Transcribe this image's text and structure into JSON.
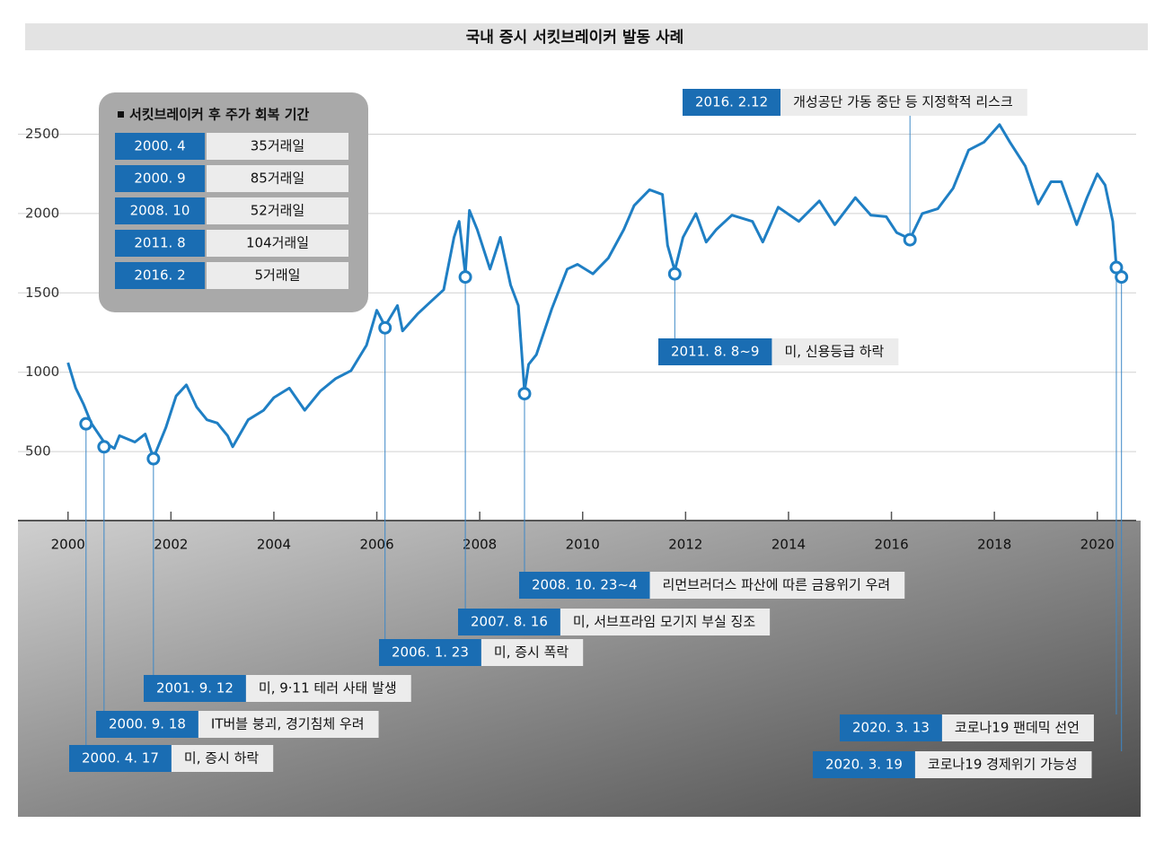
{
  "chart_data": {
    "type": "line",
    "title": "국내 증시 서킷브레이커 발동 사례",
    "color": "#1f7fc4",
    "xlim": [
      1999.9,
      2020.58
    ],
    "xticks": [
      2000,
      2002,
      2004,
      2006,
      2008,
      2010,
      2012,
      2014,
      2016,
      2018,
      2020
    ],
    "ylim": [
      65,
      2780
    ],
    "yticks": [
      500,
      1000,
      1500,
      2000,
      2500
    ],
    "grid": true,
    "x": [
      2000.0,
      2000.15,
      2000.3,
      2000.45,
      2000.7,
      2000.9,
      2001.0,
      2001.3,
      2001.5,
      2001.66,
      2001.9,
      2002.1,
      2002.3,
      2002.5,
      2002.7,
      2002.9,
      2003.1,
      2003.2,
      2003.5,
      2003.8,
      2004.0,
      2004.3,
      2004.6,
      2004.9,
      2005.2,
      2005.5,
      2005.8,
      2006.0,
      2006.16,
      2006.4,
      2006.5,
      2006.8,
      2007.0,
      2007.3,
      2007.5,
      2007.6,
      2007.72,
      2007.8,
      2007.95,
      2008.2,
      2008.4,
      2008.6,
      2008.75,
      2008.87,
      2008.95,
      2009.1,
      2009.4,
      2009.7,
      2009.9,
      2010.2,
      2010.5,
      2010.8,
      2011.0,
      2011.3,
      2011.55,
      2011.65,
      2011.79,
      2011.95,
      2012.2,
      2012.4,
      2012.6,
      2012.9,
      2013.3,
      2013.5,
      2013.8,
      2014.2,
      2014.6,
      2014.9,
      2015.3,
      2015.6,
      2015.9,
      2016.1,
      2016.36,
      2016.6,
      2016.9,
      2017.2,
      2017.5,
      2017.8,
      2018.1,
      2018.3,
      2018.6,
      2018.85,
      2019.1,
      2019.3,
      2019.6,
      2019.8,
      2020.0,
      2020.15,
      2020.3,
      2020.37,
      2020.47
    ],
    "values": [
      1060,
      900,
      800,
      680,
      560,
      520,
      600,
      560,
      610,
      460,
      650,
      850,
      920,
      780,
      700,
      680,
      600,
      530,
      700,
      760,
      840,
      900,
      760,
      880,
      960,
      1010,
      1170,
      1390,
      1290,
      1420,
      1260,
      1370,
      1430,
      1520,
      1850,
      1950,
      1620,
      2020,
      1900,
      1650,
      1850,
      1550,
      1420,
      880,
      1050,
      1110,
      1400,
      1650,
      1680,
      1620,
      1720,
      1900,
      2050,
      2150,
      2120,
      1800,
      1640,
      1850,
      2000,
      1820,
      1900,
      1990,
      1950,
      1820,
      2040,
      1950,
      2080,
      1930,
      2100,
      1990,
      1980,
      1880,
      1840,
      2000,
      2030,
      2160,
      2400,
      2450,
      2560,
      2450,
      2300,
      2060,
      2200,
      2200,
      1930,
      2100,
      2250,
      2180,
      1950,
      1660,
      1600
    ],
    "events": [
      {
        "date": "2000. 4. 17",
        "text": "미, 증시 하락",
        "x": 2000.35,
        "value": 675
      },
      {
        "date": "2000. 9. 18",
        "text": "IT버블 붕괴, 경기침체 우려",
        "x": 2000.7,
        "value": 530
      },
      {
        "date": "2001. 9. 12",
        "text": "미, 9·11 테러 사태 발생",
        "x": 2001.66,
        "value": 455
      },
      {
        "date": "2006. 1. 23",
        "text": "미, 증시 폭락",
        "x": 2006.16,
        "value": 1280
      },
      {
        "date": "2007. 8. 16",
        "text": "미, 서브프라임 모기지 부실 징조",
        "x": 2007.72,
        "value": 1600
      },
      {
        "date": "2008. 10. 23~4",
        "text": "리먼브러더스 파산에 따른 금융위기 우려",
        "x": 2008.87,
        "value": 865
      },
      {
        "date": "2011. 8. 8~9",
        "text": "미, 신용등급 하락",
        "x": 2011.79,
        "value": 1620
      },
      {
        "date": "2016. 2.12",
        "text": "개성공단 가동 중단 등 지정학적 리스크",
        "x": 2016.36,
        "value": 1835
      },
      {
        "date": "2020. 3. 13",
        "text": "코로나19 팬데믹 선언",
        "x": 2020.37,
        "value": 1660
      },
      {
        "date": "2020. 3. 19",
        "text": "코로나19 경제위기 가능성",
        "x": 2020.47,
        "value": 1600
      }
    ]
  },
  "recovery_table": {
    "title": "서킷브레이커 후 주가 회복 기간",
    "rows": [
      [
        "2000. 4",
        "35거래일"
      ],
      [
        "2000. 9",
        "85거래일"
      ],
      [
        "2008. 10",
        "52거래일"
      ],
      [
        "2011. 8",
        "104거래일"
      ],
      [
        "2016. 2",
        "5거래일"
      ]
    ]
  }
}
